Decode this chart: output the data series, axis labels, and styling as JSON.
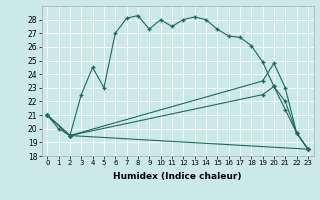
{
  "xlabel": "Humidex (Indice chaleur)",
  "bg_color": "#cce9ea",
  "line_color": "#1a6b5a",
  "xlim": [
    -0.5,
    23.5
  ],
  "ylim": [
    18,
    29
  ],
  "xticks": [
    0,
    1,
    2,
    3,
    4,
    5,
    6,
    7,
    8,
    9,
    10,
    11,
    12,
    13,
    14,
    15,
    16,
    17,
    18,
    19,
    20,
    21,
    22,
    23
  ],
  "yticks": [
    18,
    19,
    20,
    21,
    22,
    23,
    24,
    25,
    26,
    27,
    28
  ],
  "series": [
    {
      "x": [
        0,
        1,
        2,
        3,
        4,
        5,
        6,
        7,
        8,
        9,
        10,
        11,
        12,
        13,
        14,
        15,
        16,
        17,
        18,
        19,
        20,
        21,
        22,
        23
      ],
      "y": [
        21.0,
        20.0,
        19.5,
        22.5,
        24.5,
        23.0,
        27.0,
        28.1,
        28.3,
        27.3,
        28.0,
        27.5,
        28.0,
        28.2,
        28.0,
        27.3,
        26.8,
        26.7,
        26.1,
        24.9,
        23.1,
        21.4,
        19.7,
        18.5
      ]
    },
    {
      "x": [
        0,
        2,
        23
      ],
      "y": [
        21.0,
        19.5,
        18.5
      ]
    },
    {
      "x": [
        0,
        2,
        19,
        20,
        21,
        22,
        23
      ],
      "y": [
        21.0,
        19.5,
        23.5,
        24.8,
        23.0,
        19.7,
        18.5
      ]
    },
    {
      "x": [
        0,
        2,
        19,
        20,
        21,
        22,
        23
      ],
      "y": [
        21.0,
        19.5,
        22.5,
        23.1,
        22.0,
        19.7,
        18.5
      ]
    }
  ]
}
